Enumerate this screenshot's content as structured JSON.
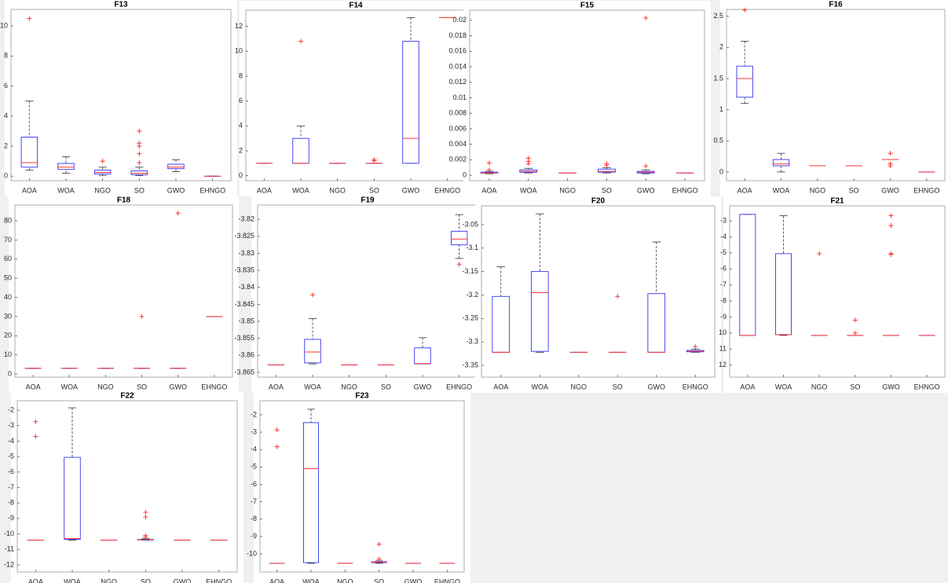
{
  "style": {
    "box_color": "#3333ff",
    "median_color": "#ff3333",
    "outlier_color": "#ff3333",
    "whisker_color": "#333333"
  },
  "chart_data": [
    {
      "type": "box",
      "title": "F13",
      "categories": [
        "AOA",
        "WOA",
        "NGO",
        "SO",
        "GWO",
        "EHNGO"
      ],
      "ylim": [
        -0.3,
        11.1
      ],
      "yticks": [
        0,
        2,
        4,
        6,
        8,
        10
      ],
      "boxes": [
        {
          "low": 0.4,
          "q1": 0.6,
          "median": 0.9,
          "q3": 2.6,
          "high": 5,
          "outliers": [
            10.5
          ]
        },
        {
          "low": 0.2,
          "q1": 0.45,
          "median": 0.6,
          "q3": 0.85,
          "high": 1.3,
          "outliers": []
        },
        {
          "low": 0.05,
          "q1": 0.15,
          "median": 0.25,
          "q3": 0.4,
          "high": 0.6,
          "outliers": [
            1.0
          ]
        },
        {
          "low": 0.05,
          "q1": 0.1,
          "median": 0.2,
          "q3": 0.35,
          "high": 0.6,
          "outliers": [
            0.9,
            1.5,
            2.0,
            2.2,
            3.0
          ]
        },
        {
          "low": 0.3,
          "q1": 0.5,
          "median": 0.6,
          "q3": 0.8,
          "high": 1.1,
          "outliers": []
        },
        {
          "low": 0,
          "q1": 0,
          "median": 0,
          "q3": 0,
          "high": 0,
          "outliers": []
        }
      ]
    },
    {
      "type": "box",
      "title": "F14",
      "categories": [
        "AOA",
        "WOA",
        "NGO",
        "SO",
        "GWO",
        "EHNGO"
      ],
      "ylim": [
        -0.4,
        13.3
      ],
      "yticks": [
        0,
        2,
        4,
        6,
        8,
        10,
        12
      ],
      "boxes": [
        {
          "low": 1,
          "q1": 1,
          "median": 1,
          "q3": 1,
          "high": 1,
          "outliers": []
        },
        {
          "low": 1,
          "q1": 1,
          "median": 1,
          "q3": 3,
          "high": 4,
          "outliers": [
            10.8
          ]
        },
        {
          "low": 1,
          "q1": 1,
          "median": 1,
          "q3": 1,
          "high": 1,
          "outliers": []
        },
        {
          "low": 1,
          "q1": 1,
          "median": 1,
          "q3": 1,
          "high": 1,
          "outliers": [
            1.2,
            1.3
          ]
        },
        {
          "low": 1,
          "q1": 1,
          "median": 3,
          "q3": 10.8,
          "high": 12.7,
          "outliers": []
        },
        {
          "low": 12.7,
          "q1": 12.7,
          "median": 12.7,
          "q3": 12.7,
          "high": 12.7,
          "outliers": []
        }
      ]
    },
    {
      "type": "box",
      "title": "F15",
      "categories": [
        "AOA",
        "WOA",
        "NGO",
        "SO",
        "GWO",
        "EHNGO"
      ],
      "ylim": [
        -0.0007,
        0.0213
      ],
      "yticks": [
        0,
        0.002,
        0.004,
        0.006,
        0.008,
        0.01,
        0.012,
        0.014,
        0.016,
        0.018,
        0.02
      ],
      "boxes": [
        {
          "low": 0.0002,
          "q1": 0.0003,
          "median": 0.0003,
          "q3": 0.0004,
          "high": 0.0005,
          "outliers": [
            0.0007,
            0.0016
          ]
        },
        {
          "low": 0.0003,
          "q1": 0.0004,
          "median": 0.0005,
          "q3": 0.0007,
          "high": 0.0009,
          "outliers": [
            0.0015,
            0.0018,
            0.0022
          ]
        },
        {
          "low": 0.0003,
          "q1": 0.0003,
          "median": 0.0003,
          "q3": 0.0003,
          "high": 0.0003,
          "outliers": []
        },
        {
          "low": 0.0003,
          "q1": 0.0004,
          "median": 0.0005,
          "q3": 0.0008,
          "high": 0.001,
          "outliers": [
            0.0013,
            0.0015
          ]
        },
        {
          "low": 0.0002,
          "q1": 0.0003,
          "median": 0.0004,
          "q3": 0.0005,
          "high": 0.0007,
          "outliers": [
            0.0012,
            0.0203
          ]
        },
        {
          "low": 0.0003,
          "q1": 0.0003,
          "median": 0.0003,
          "q3": 0.0003,
          "high": 0.0003,
          "outliers": []
        }
      ]
    },
    {
      "type": "box",
      "title": "F16",
      "categories": [
        "AOA",
        "WOA",
        "NGO",
        "SO",
        "GWO",
        "EHNGO"
      ],
      "ylim": [
        -0.14,
        2.61
      ],
      "yticks": [
        0,
        0.5,
        1,
        1.5,
        2,
        2.5
      ],
      "boxes": [
        {
          "low": 1.1,
          "q1": 1.2,
          "median": 1.5,
          "q3": 1.7,
          "high": 2.1,
          "outliers": [
            2.6
          ]
        },
        {
          "low": 0,
          "q1": 0.1,
          "median": 0.13,
          "q3": 0.2,
          "high": 0.3,
          "outliers": []
        },
        {
          "low": 0.1,
          "q1": 0.1,
          "median": 0.1,
          "q3": 0.1,
          "high": 0.1,
          "outliers": []
        },
        {
          "low": 0.1,
          "q1": 0.1,
          "median": 0.1,
          "q3": 0.1,
          "high": 0.1,
          "outliers": []
        },
        {
          "low": 0.2,
          "q1": 0.2,
          "median": 0.2,
          "q3": 0.2,
          "high": 0.2,
          "outliers": [
            0.1,
            0.13,
            0.3
          ]
        },
        {
          "low": 0,
          "q1": 0,
          "median": 0,
          "q3": 0,
          "high": 0,
          "outliers": []
        }
      ]
    },
    {
      "type": "box",
      "title": "F18",
      "categories": [
        "AOA",
        "WOA",
        "NGO",
        "SO",
        "GWO",
        "EHNGO"
      ],
      "ylim": [
        -1.6,
        88.2
      ],
      "yticks": [
        0,
        10,
        20,
        30,
        40,
        50,
        60,
        70,
        80
      ],
      "boxes": [
        {
          "low": 3,
          "q1": 3,
          "median": 3,
          "q3": 3,
          "high": 3,
          "outliers": []
        },
        {
          "low": 3,
          "q1": 3,
          "median": 3,
          "q3": 3,
          "high": 3,
          "outliers": []
        },
        {
          "low": 3,
          "q1": 3,
          "median": 3,
          "q3": 3,
          "high": 3,
          "outliers": []
        },
        {
          "low": 3,
          "q1": 3,
          "median": 3,
          "q3": 3,
          "high": 3,
          "outliers": [
            30
          ]
        },
        {
          "low": 3,
          "q1": 3,
          "median": 3,
          "q3": 3,
          "high": 3,
          "outliers": [
            84
          ]
        },
        {
          "low": 30,
          "q1": 30,
          "median": 30,
          "q3": 30,
          "high": 30,
          "outliers": []
        }
      ]
    },
    {
      "type": "box",
      "title": "F19",
      "categories": [
        "AOA",
        "WOA",
        "NGO",
        "SO",
        "GWO",
        "EHNGO"
      ],
      "ylim": [
        -3.8664,
        -3.8158
      ],
      "yticks": [
        -3.82,
        -3.825,
        -3.83,
        -3.835,
        -3.84,
        -3.845,
        -3.85,
        -3.855,
        -3.86,
        -3.865
      ],
      "boxes": [
        {
          "low": -3.8628,
          "q1": -3.8628,
          "median": -3.8628,
          "q3": -3.8628,
          "high": -3.8628,
          "outliers": []
        },
        {
          "low": -3.8625,
          "q1": -3.8622,
          "median": -3.859,
          "q3": -3.8553,
          "high": -3.8492,
          "outliers": [
            -3.8422
          ]
        },
        {
          "low": -3.8628,
          "q1": -3.8628,
          "median": -3.8628,
          "q3": -3.8628,
          "high": -3.8628,
          "outliers": []
        },
        {
          "low": -3.8628,
          "q1": -3.8628,
          "median": -3.8628,
          "q3": -3.8628,
          "high": -3.8628,
          "outliers": []
        },
        {
          "low": -3.8625,
          "q1": -3.8625,
          "median": -3.8624,
          "q3": -3.8578,
          "high": -3.8548,
          "outliers": []
        },
        {
          "low": -3.8315,
          "q1": -3.8275,
          "median": -3.8258,
          "q3": -3.8235,
          "high": -3.8186,
          "outliers": [
            -3.8332
          ]
        }
      ]
    },
    {
      "type": "box",
      "title": "F20",
      "categories": [
        "AOA",
        "WOA",
        "NGO",
        "SO",
        "GWO",
        "EHNGO"
      ],
      "ylim": [
        -3.375,
        -3.01
      ],
      "yticks": [
        -3.05,
        -3.1,
        -3.15,
        -3.2,
        -3.25,
        -3.3,
        -3.35
      ],
      "boxes": [
        {
          "low": -3.322,
          "q1": -3.322,
          "median": -3.322,
          "q3": -3.203,
          "high": -3.14,
          "outliers": []
        },
        {
          "low": -3.322,
          "q1": -3.32,
          "median": -3.195,
          "q3": -3.15,
          "high": -3.027,
          "outliers": []
        },
        {
          "low": -3.322,
          "q1": -3.322,
          "median": -3.322,
          "q3": -3.322,
          "high": -3.322,
          "outliers": []
        },
        {
          "low": -3.322,
          "q1": -3.322,
          "median": -3.322,
          "q3": -3.322,
          "high": -3.322,
          "outliers": [
            -3.203
          ]
        },
        {
          "low": -3.322,
          "q1": -3.322,
          "median": -3.322,
          "q3": -3.197,
          "high": -3.087,
          "outliers": []
        },
        {
          "low": -3.322,
          "q1": -3.321,
          "median": -3.32,
          "q3": -3.318,
          "high": -3.315,
          "outliers": [
            -3.31
          ]
        }
      ]
    },
    {
      "type": "box",
      "title": "F21",
      "categories": [
        "AOA",
        "WOA",
        "NGO",
        "SO",
        "GWO",
        "EHNGO"
      ],
      "ylim": [
        -12.75,
        -2.07
      ],
      "yticks": [
        -3,
        -4,
        -5,
        -6,
        -7,
        -8,
        -9,
        {
          "value": -10,
          "label": "10"
        },
        {
          "value": -11,
          "label": "11"
        },
        {
          "value": -12,
          "label": "12"
        }
      ],
      "boxes": [
        {
          "low": -10.15,
          "q1": -10.15,
          "median": -10.15,
          "q3": -2.6,
          "high": -2.6,
          "outliers": []
        },
        {
          "low": -10.15,
          "q1": -10.1,
          "median": -10.1,
          "q3": -5.05,
          "high": -2.68,
          "outliers": []
        },
        {
          "low": -10.15,
          "q1": -10.15,
          "median": -10.15,
          "q3": -10.15,
          "high": -10.15,
          "outliers": [
            -5.05
          ]
        },
        {
          "low": -10.15,
          "q1": -10.15,
          "median": -10.15,
          "q3": -10.15,
          "high": -10.15,
          "outliers": [
            -9.2,
            -10.0
          ]
        },
        {
          "low": -10.15,
          "q1": -10.15,
          "median": -10.15,
          "q3": -10.15,
          "high": -10.15,
          "outliers": [
            -2.68,
            -3.3,
            -5.05,
            -5.1
          ]
        },
        {
          "low": -10.15,
          "q1": -10.15,
          "median": -10.15,
          "q3": -10.15,
          "high": -10.15,
          "outliers": []
        }
      ]
    },
    {
      "type": "box",
      "title": "F22",
      "categories": [
        "AOA",
        "WOA",
        "NGO",
        "SO",
        "GWO",
        "EHNGO"
      ],
      "ylim": [
        -12.46,
        -1.39
      ],
      "yticks": [
        -2,
        -3,
        -4,
        -5,
        -6,
        -7,
        -8,
        -9,
        -10,
        -11,
        -12
      ],
      "boxes": [
        {
          "low": -10.4,
          "q1": -10.4,
          "median": -10.4,
          "q3": -10.4,
          "high": -10.4,
          "outliers": [
            -2.75,
            -3.7
          ]
        },
        {
          "low": -10.4,
          "q1": -10.35,
          "median": -10.3,
          "q3": -5.05,
          "high": -1.85,
          "outliers": []
        },
        {
          "low": -10.4,
          "q1": -10.4,
          "median": -10.4,
          "q3": -10.4,
          "high": -10.4,
          "outliers": []
        },
        {
          "low": -10.4,
          "q1": -10.38,
          "median": -10.36,
          "q3": -10.35,
          "high": -10.3,
          "outliers": [
            -8.6,
            -8.9,
            -10.1,
            -10.2
          ]
        },
        {
          "low": -10.4,
          "q1": -10.4,
          "median": -10.4,
          "q3": -10.4,
          "high": -10.4,
          "outliers": []
        },
        {
          "low": -10.4,
          "q1": -10.4,
          "median": -10.4,
          "q3": -10.4,
          "high": -10.4,
          "outliers": []
        }
      ]
    },
    {
      "type": "box",
      "title": "F23",
      "categories": [
        "AOA",
        "WOA",
        "NGO",
        "SO",
        "GWO",
        "EHNGO"
      ],
      "ylim": [
        -11.04,
        -1.19
      ],
      "yticks": [
        -2,
        -3,
        -4,
        -5,
        -6,
        -7,
        -8,
        -9,
        -10
      ],
      "boxes": [
        {
          "low": -10.54,
          "q1": -10.54,
          "median": -10.54,
          "q3": -10.54,
          "high": -10.54,
          "outliers": [
            -2.87,
            -3.84
          ]
        },
        {
          "low": -10.54,
          "q1": -10.5,
          "median": -5.1,
          "q3": -2.45,
          "high": -1.68,
          "outliers": []
        },
        {
          "low": -10.54,
          "q1": -10.54,
          "median": -10.54,
          "q3": -10.54,
          "high": -10.54,
          "outliers": []
        },
        {
          "low": -10.54,
          "q1": -10.5,
          "median": -10.47,
          "q3": -10.45,
          "high": -10.4,
          "outliers": [
            -9.45,
            -10.3
          ]
        },
        {
          "low": -10.54,
          "q1": -10.54,
          "median": -10.54,
          "q3": -10.54,
          "high": -10.54,
          "outliers": []
        },
        {
          "low": -10.54,
          "q1": -10.54,
          "median": -10.54,
          "q3": -10.54,
          "high": -10.54,
          "outliers": []
        }
      ]
    }
  ]
}
